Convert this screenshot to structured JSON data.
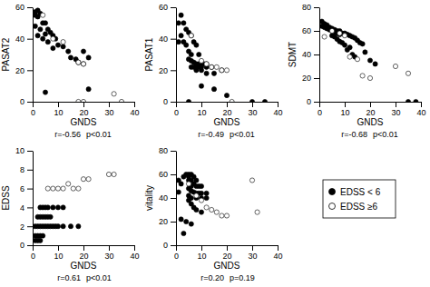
{
  "chart_data": [
    {
      "type": "scatter",
      "xlabel": "GNDS",
      "ylabel": "PASAT2",
      "xlim": [
        0,
        40
      ],
      "ylim": [
        0,
        60
      ],
      "xticks": [
        0,
        10,
        20,
        30,
        40
      ],
      "yticks": [
        0,
        20,
        40,
        60
      ],
      "annotations": [
        "r=-0.56",
        "p<0.01"
      ],
      "series": [
        {
          "name": "EDSS < 6",
          "color": "black",
          "marker": "circle",
          "x": [
            1,
            1,
            2,
            3,
            2,
            5,
            4,
            1,
            3,
            6,
            7,
            5,
            8,
            2,
            4,
            9,
            6,
            10,
            12,
            8,
            14,
            15,
            17,
            18,
            20,
            22,
            5,
            20,
            22
          ],
          "values": [
            57,
            55,
            58,
            56,
            54,
            50,
            50,
            48,
            46,
            46,
            44,
            43,
            42,
            42,
            40,
            40,
            38,
            36,
            35,
            34,
            32,
            28,
            27,
            25,
            24,
            8,
            6,
            32,
            28
          ]
        },
        {
          "name": "EDSS ≥6",
          "color": "white",
          "marker": "circle",
          "x": [
            4,
            8,
            12,
            18,
            20,
            32,
            35,
            18,
            20
          ],
          "values": [
            55,
            40,
            38,
            25,
            24,
            5,
            0,
            0,
            0
          ]
        }
      ]
    },
    {
      "type": "scatter",
      "xlabel": "GNDS",
      "ylabel": "PASAT1",
      "xlim": [
        0,
        40
      ],
      "ylim": [
        0,
        60
      ],
      "xticks": [
        0,
        10,
        20,
        30,
        40
      ],
      "yticks": [
        0,
        20,
        40,
        60
      ],
      "annotations": [
        "r=-0.49",
        "p<0.01"
      ],
      "series": [
        {
          "name": "EDSS < 6",
          "color": "black",
          "marker": "circle",
          "x": [
            1,
            2,
            3,
            1,
            4,
            5,
            2,
            6,
            3,
            7,
            4,
            8,
            5,
            6,
            9,
            5,
            6,
            7,
            8,
            9,
            10,
            11,
            12,
            6,
            7,
            8,
            9,
            10,
            12,
            14,
            8,
            10,
            12,
            15,
            18,
            10,
            15,
            20,
            5,
            35,
            30
          ],
          "values": [
            38,
            55,
            50,
            50,
            46,
            44,
            42,
            42,
            38,
            38,
            36,
            36,
            32,
            30,
            30,
            27,
            26,
            25,
            24,
            24,
            24,
            24,
            24,
            22,
            22,
            22,
            22,
            22,
            22,
            22,
            20,
            20,
            18,
            18,
            20,
            10,
            8,
            4,
            0,
            0,
            0
          ]
        },
        {
          "name": "EDSS ≥6",
          "color": "white",
          "marker": "circle",
          "x": [
            6,
            10,
            12,
            14,
            16,
            18,
            20,
            22
          ],
          "values": [
            42,
            26,
            24,
            22,
            22,
            20,
            20,
            0
          ]
        }
      ]
    },
    {
      "type": "scatter",
      "xlabel": "GNDS",
      "ylabel": "SDMT",
      "xlim": [
        0,
        40
      ],
      "ylim": [
        0,
        80
      ],
      "xticks": [
        0,
        10,
        20,
        30,
        40
      ],
      "yticks": [
        0,
        20,
        40,
        60,
        80
      ],
      "annotations": [
        "r=-0.68",
        "p<0.01"
      ],
      "series": [
        {
          "name": "EDSS < 6",
          "color": "black",
          "marker": "circle",
          "x": [
            1,
            2,
            3,
            1,
            2,
            4,
            3,
            5,
            4,
            6,
            5,
            7,
            8,
            6,
            7,
            9,
            10,
            8,
            11,
            5,
            12,
            6,
            13,
            14,
            7,
            15,
            8,
            16,
            9,
            17,
            10,
            12,
            11,
            18,
            13,
            14,
            20,
            22,
            35,
            38
          ],
          "values": [
            68,
            66,
            65,
            64,
            63,
            63,
            62,
            62,
            61,
            61,
            60,
            60,
            60,
            59,
            58,
            58,
            58,
            57,
            57,
            56,
            56,
            55,
            55,
            54,
            53,
            52,
            51,
            50,
            50,
            49,
            48,
            46,
            44,
            42,
            40,
            38,
            35,
            32,
            0,
            0
          ]
        },
        {
          "name": "EDSS ≥6",
          "color": "white",
          "marker": "circle",
          "x": [
            2,
            5,
            8,
            10,
            12,
            15,
            17,
            20,
            30,
            35
          ],
          "values": [
            55,
            60,
            58,
            56,
            38,
            36,
            22,
            20,
            30,
            24
          ]
        }
      ]
    },
    {
      "type": "scatter",
      "xlabel": "GNDS",
      "ylabel": "EDSS",
      "xlim": [
        0,
        40
      ],
      "ylim": [
        0,
        10
      ],
      "xticks": [
        0,
        10,
        20,
        30,
        40
      ],
      "yticks": [
        0,
        2,
        4,
        6,
        8,
        10
      ],
      "annotations": [
        "r=0.61",
        "p<0.01"
      ],
      "series": [
        {
          "name": "EDSS < 6",
          "color": "black",
          "marker": "circle",
          "x": [
            1,
            2,
            3,
            4,
            1,
            2,
            3,
            4,
            5,
            6,
            2,
            3,
            4,
            5,
            6,
            7,
            3,
            4,
            5,
            8,
            10,
            12,
            6,
            7,
            8,
            9,
            10,
            12,
            15,
            18,
            1,
            2,
            3
          ],
          "values": [
            1,
            1,
            1,
            1,
            2,
            2,
            2,
            2,
            2,
            2,
            3,
            3,
            3,
            3,
            3,
            3,
            4,
            4,
            4,
            4,
            4,
            4,
            4,
            2,
            2,
            2,
            2,
            2,
            2,
            2,
            0.5,
            0.5,
            0.5
          ]
        },
        {
          "name": "EDSS ≥6",
          "color": "white",
          "marker": "circle",
          "x": [
            6,
            8,
            10,
            12,
            14,
            16,
            18,
            20,
            22,
            30,
            32
          ],
          "values": [
            6,
            6,
            6,
            6,
            6.5,
            6,
            6,
            7,
            7,
            7.5,
            7.5
          ]
        }
      ]
    },
    {
      "type": "scatter",
      "xlabel": "GNDS",
      "ylabel": "vitality",
      "xlim": [
        0,
        40
      ],
      "ylim": [
        0,
        80
      ],
      "xticks": [
        0,
        10,
        20,
        30,
        40
      ],
      "yticks": [
        0,
        20,
        40,
        60,
        80
      ],
      "annotations": [
        "r=0.20",
        "p=0.19"
      ],
      "series": [
        {
          "name": "EDSS < 6",
          "color": "black",
          "marker": "circle",
          "x": [
            1,
            2,
            1,
            3,
            4,
            5,
            6,
            5,
            7,
            6,
            8,
            5,
            7,
            8,
            6,
            9,
            10,
            5,
            6,
            7,
            8,
            9,
            10,
            12,
            5,
            6,
            8,
            10,
            12,
            5,
            6,
            7,
            8,
            10,
            2,
            4,
            6,
            3
          ],
          "values": [
            45,
            52,
            55,
            58,
            60,
            60,
            60,
            58,
            58,
            55,
            55,
            55,
            52,
            50,
            50,
            50,
            50,
            48,
            46,
            45,
            44,
            44,
            44,
            44,
            42,
            40,
            40,
            40,
            40,
            38,
            35,
            32,
            30,
            28,
            22,
            20,
            18,
            10
          ]
        },
        {
          "name": "EDSS ≥6",
          "color": "white",
          "marker": "circle",
          "x": [
            5,
            8,
            10,
            12,
            14,
            16,
            18,
            20,
            30,
            32
          ],
          "values": [
            52,
            42,
            38,
            32,
            30,
            28,
            25,
            25,
            55,
            28
          ]
        }
      ]
    }
  ]
}
